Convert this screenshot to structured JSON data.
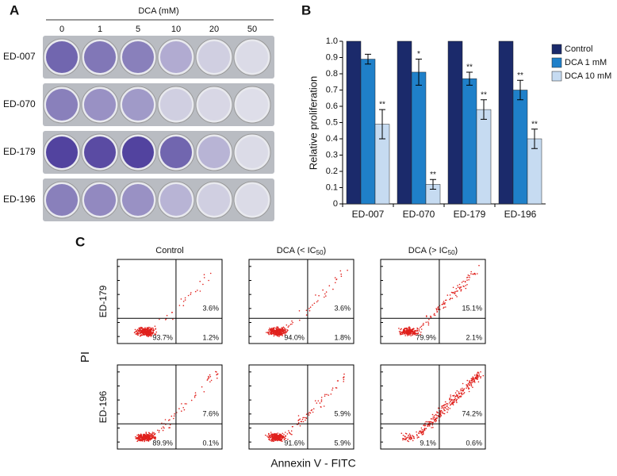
{
  "panel_a": {
    "label": "A",
    "title": "DCA (mM)",
    "concentrations": [
      "0",
      "1",
      "5",
      "10",
      "20",
      "50"
    ],
    "rows": [
      "ED-007",
      "ED-070",
      "ED-179",
      "ED-196"
    ]
  },
  "chart_data": {
    "type": "bar",
    "label": "B",
    "y_label": "Relative proliferation",
    "categories": [
      "ED-007",
      "ED-070",
      "ED-179",
      "ED-196"
    ],
    "series": [
      {
        "name": "Control",
        "color": "#1b2a6b",
        "values": [
          1,
          1,
          1,
          1
        ]
      },
      {
        "name": "DCA 1 mM",
        "color": "#1f80c9",
        "values": [
          0.89,
          0.81,
          0.77,
          0.7
        ],
        "errors": [
          0.03,
          0.08,
          0.04,
          0.06
        ],
        "annotations": [
          null,
          "*",
          "**",
          "**"
        ]
      },
      {
        "name": "DCA 10 mM",
        "color": "#c6dbf1",
        "values": [
          0.49,
          0.12,
          0.58,
          0.4
        ],
        "errors": [
          0.09,
          0.03,
          0.06,
          0.06
        ],
        "annotations": [
          "**",
          "**",
          "**",
          "**"
        ]
      }
    ],
    "ylim": [
      0,
      1
    ],
    "yticks": [
      0,
      0.1,
      0.2,
      0.3,
      0.4,
      0.5,
      0.6,
      0.7,
      0.8,
      0.9,
      {
        "value": 1,
        "label": "1.0"
      }
    ],
    "legend": "right"
  },
  "panel_c": {
    "label": "C",
    "y_label": "PI",
    "x_label": "Annexin V - FITC",
    "columns": [
      {
        "text": "Control"
      },
      {
        "text": "DCA (< IC",
        "sub": "50",
        "after": ")"
      },
      {
        "text": "DCA (> IC",
        "sub": "50",
        "after": ")"
      }
    ],
    "rows": [
      {
        "name": "ED-179",
        "plots": [
          {
            "upper_right": "3.6%",
            "lower_left": "93.7%",
            "lower_right": "1.2%"
          },
          {
            "upper_right": "3.6%",
            "lower_left": "94.0%",
            "lower_right": "1.8%"
          },
          {
            "upper_right": "15.1%",
            "lower_left": "79.9%",
            "lower_right": "2.1%"
          }
        ]
      },
      {
        "name": "ED-196",
        "plots": [
          {
            "upper_right": "7.6%",
            "lower_left": "89.9%",
            "lower_right": "0.1%"
          },
          {
            "upper_right": "5.9%",
            "lower_left": "91.6%",
            "lower_right": "5.9%"
          },
          {
            "upper_right": "74.2%",
            "lower_left": "9.1%",
            "lower_right": "0.6%"
          }
        ]
      }
    ]
  }
}
